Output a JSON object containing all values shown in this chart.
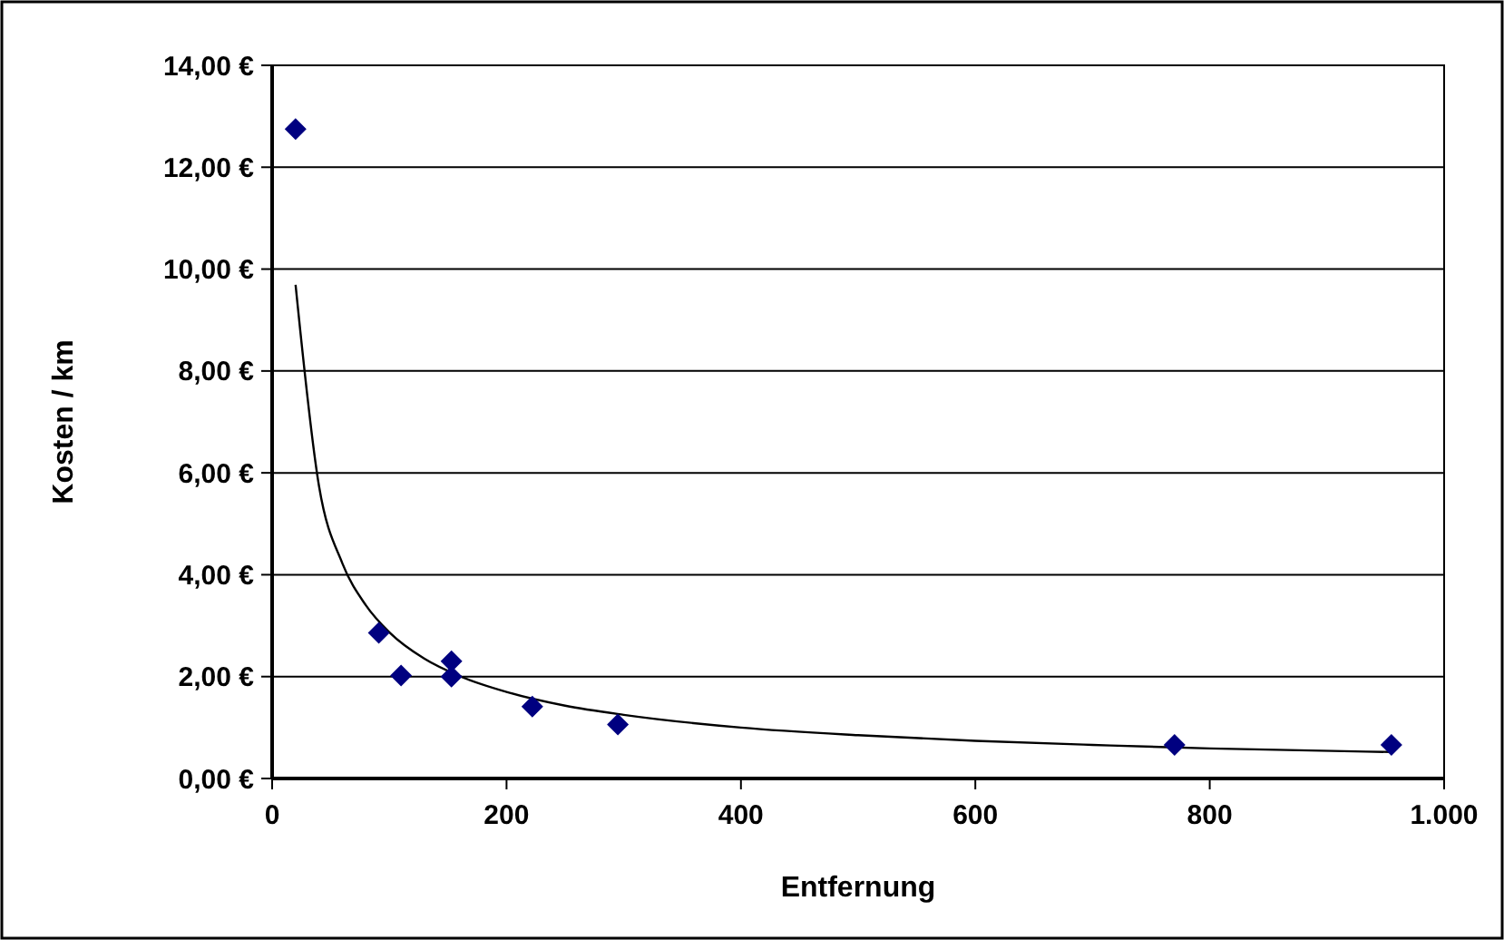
{
  "chart_data": {
    "type": "scatter",
    "xlabel": "Entfernung",
    "ylabel": "Kosten / km",
    "xlim": [
      0,
      1000
    ],
    "ylim": [
      0,
      14
    ],
    "xticks": [
      0,
      200,
      400,
      600,
      800,
      {
        "value": 1000,
        "label": "1.000"
      }
    ],
    "yticks": [
      {
        "value": 0,
        "label": "0,00 €"
      },
      {
        "value": 2,
        "label": "2,00 €"
      },
      {
        "value": 4,
        "label": "4,00 €"
      },
      {
        "value": 6,
        "label": "6,00 €"
      },
      {
        "value": 8,
        "label": "8,00 €"
      },
      {
        "value": 10,
        "label": "10,00 €"
      },
      {
        "value": 12,
        "label": "12,00 €"
      },
      {
        "value": 14,
        "label": "14,00 €"
      }
    ],
    "grid": "y",
    "marker": "diamond",
    "series": [
      {
        "color": "#000080",
        "x": [
          20,
          91,
          110,
          153,
          153,
          222,
          295,
          770,
          955
        ],
        "values": [
          12.75,
          2.86,
          2.02,
          2.3,
          2.0,
          1.41,
          1.06,
          0.66,
          0.66
        ]
      },
      {
        "type": "line",
        "color": "#000000",
        "marker": "none",
        "line_style": "solid",
        "x": [
          20,
          40,
          60,
          80,
          100,
          130,
          160,
          200,
          250,
          300,
          400,
          500,
          600,
          700,
          800,
          955
        ],
        "values": [
          9.69,
          5.74,
          4.22,
          3.4,
          2.87,
          2.35,
          2.01,
          1.7,
          1.43,
          1.25,
          1.0,
          0.85,
          0.74,
          0.66,
          0.59,
          0.52
        ]
      }
    ]
  }
}
